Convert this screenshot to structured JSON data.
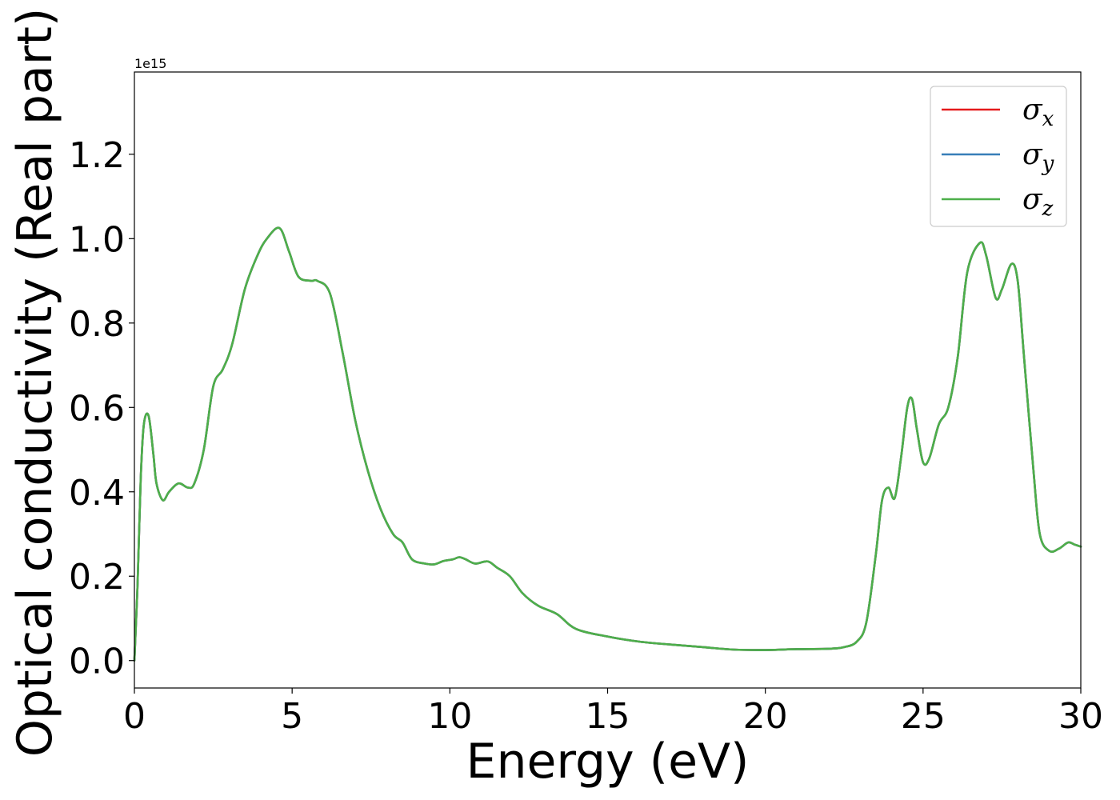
{
  "chart_data": {
    "type": "line",
    "xlabel": "Energy (eV)",
    "ylabel": "Optical conductivity (Real part)",
    "y_offset_label": "1e15",
    "xlim": [
      0,
      30
    ],
    "ylim": [
      -0.065,
      1.395
    ],
    "x_ticks": [
      0,
      5,
      10,
      15,
      20,
      25,
      30
    ],
    "x_tick_labels": [
      "0",
      "5",
      "10",
      "15",
      "20",
      "25",
      "30"
    ],
    "y_ticks": [
      0.0,
      0.2,
      0.4,
      0.6,
      0.8,
      1.0,
      1.2
    ],
    "y_tick_labels": [
      "0.0",
      "0.2",
      "0.4",
      "0.6",
      "0.8",
      "1.0",
      "1.2"
    ],
    "grid": false,
    "legend": "top-right",
    "x": [
      0,
      0.1,
      0.2,
      0.3,
      0.45,
      0.6,
      0.7,
      0.9,
      1.1,
      1.4,
      1.7,
      1.9,
      2.2,
      2.5,
      2.8,
      3.1,
      3.5,
      3.9,
      4.2,
      4.6,
      4.9,
      5.2,
      5.6,
      5.8,
      6.2,
      6.6,
      7.0,
      7.4,
      7.8,
      8.2,
      8.5,
      8.8,
      9.2,
      9.5,
      9.8,
      10.1,
      10.3,
      10.5,
      10.8,
      11.2,
      11.5,
      11.9,
      12.3,
      12.8,
      13.4,
      14.0,
      15.0,
      16.0,
      17.0,
      18.0,
      19.0,
      20.0,
      21.0,
      22.0,
      22.5,
      22.9,
      23.2,
      23.5,
      23.7,
      23.9,
      24.1,
      24.3,
      24.5,
      24.65,
      24.8,
      25.0,
      25.2,
      25.5,
      25.8,
      26.1,
      26.4,
      26.8,
      27.0,
      27.3,
      27.5,
      27.8,
      28.0,
      28.2,
      28.5,
      28.7,
      29.0,
      29.3,
      29.6,
      29.8,
      30.0
    ],
    "series": [
      {
        "name": "σx",
        "label": "σ",
        "sub": "x",
        "color": "#e41a1c",
        "dash": "",
        "values": [
          0.0,
          0.18,
          0.43,
          0.56,
          0.58,
          0.49,
          0.42,
          0.38,
          0.4,
          0.42,
          0.41,
          0.42,
          0.5,
          0.65,
          0.69,
          0.75,
          0.88,
          0.96,
          1.0,
          1.025,
          0.97,
          0.91,
          0.9,
          0.9,
          0.87,
          0.73,
          0.57,
          0.45,
          0.36,
          0.3,
          0.28,
          0.24,
          0.23,
          0.228,
          0.236,
          0.24,
          0.245,
          0.24,
          0.23,
          0.235,
          0.22,
          0.2,
          0.16,
          0.13,
          0.11,
          0.075,
          0.057,
          0.045,
          0.038,
          0.032,
          0.026,
          0.025,
          0.027,
          0.028,
          0.032,
          0.045,
          0.09,
          0.25,
          0.38,
          0.41,
          0.385,
          0.48,
          0.6,
          0.62,
          0.55,
          0.47,
          0.48,
          0.56,
          0.6,
          0.72,
          0.92,
          0.99,
          0.96,
          0.86,
          0.88,
          0.94,
          0.9,
          0.72,
          0.45,
          0.3,
          0.26,
          0.265,
          0.28,
          0.275,
          0.27
        ]
      },
      {
        "name": "σy",
        "label": "σ",
        "sub": "y",
        "color": "#377eb8",
        "dash": "",
        "values": [
          0.0,
          0.18,
          0.43,
          0.56,
          0.58,
          0.49,
          0.42,
          0.38,
          0.4,
          0.42,
          0.41,
          0.42,
          0.5,
          0.65,
          0.69,
          0.75,
          0.88,
          0.96,
          1.0,
          1.025,
          0.97,
          0.91,
          0.9,
          0.9,
          0.87,
          0.73,
          0.57,
          0.45,
          0.36,
          0.3,
          0.28,
          0.24,
          0.23,
          0.228,
          0.236,
          0.24,
          0.245,
          0.24,
          0.23,
          0.235,
          0.22,
          0.2,
          0.16,
          0.13,
          0.11,
          0.075,
          0.057,
          0.045,
          0.038,
          0.032,
          0.026,
          0.025,
          0.027,
          0.028,
          0.032,
          0.045,
          0.09,
          0.25,
          0.38,
          0.41,
          0.385,
          0.48,
          0.6,
          0.62,
          0.55,
          0.47,
          0.48,
          0.56,
          0.6,
          0.72,
          0.92,
          0.99,
          0.96,
          0.86,
          0.88,
          0.94,
          0.9,
          0.72,
          0.45,
          0.3,
          0.26,
          0.265,
          0.28,
          0.275,
          0.27
        ]
      },
      {
        "name": "σz",
        "label": "σ",
        "sub": "z",
        "color": "#4daf4a",
        "dash": "",
        "values": [
          0.0,
          0.18,
          0.43,
          0.56,
          0.58,
          0.49,
          0.42,
          0.38,
          0.4,
          0.42,
          0.41,
          0.42,
          0.5,
          0.65,
          0.69,
          0.75,
          0.88,
          0.96,
          1.0,
          1.025,
          0.97,
          0.91,
          0.9,
          0.9,
          0.87,
          0.73,
          0.57,
          0.45,
          0.36,
          0.3,
          0.28,
          0.24,
          0.23,
          0.228,
          0.236,
          0.24,
          0.245,
          0.24,
          0.23,
          0.235,
          0.22,
          0.2,
          0.16,
          0.13,
          0.11,
          0.075,
          0.057,
          0.045,
          0.038,
          0.032,
          0.026,
          0.025,
          0.027,
          0.028,
          0.032,
          0.045,
          0.09,
          0.25,
          0.38,
          0.41,
          0.385,
          0.48,
          0.6,
          0.62,
          0.55,
          0.47,
          0.48,
          0.56,
          0.6,
          0.72,
          0.92,
          0.99,
          0.96,
          0.86,
          0.88,
          0.94,
          0.9,
          0.72,
          0.45,
          0.3,
          0.26,
          0.265,
          0.28,
          0.275,
          0.27
        ]
      }
    ]
  }
}
